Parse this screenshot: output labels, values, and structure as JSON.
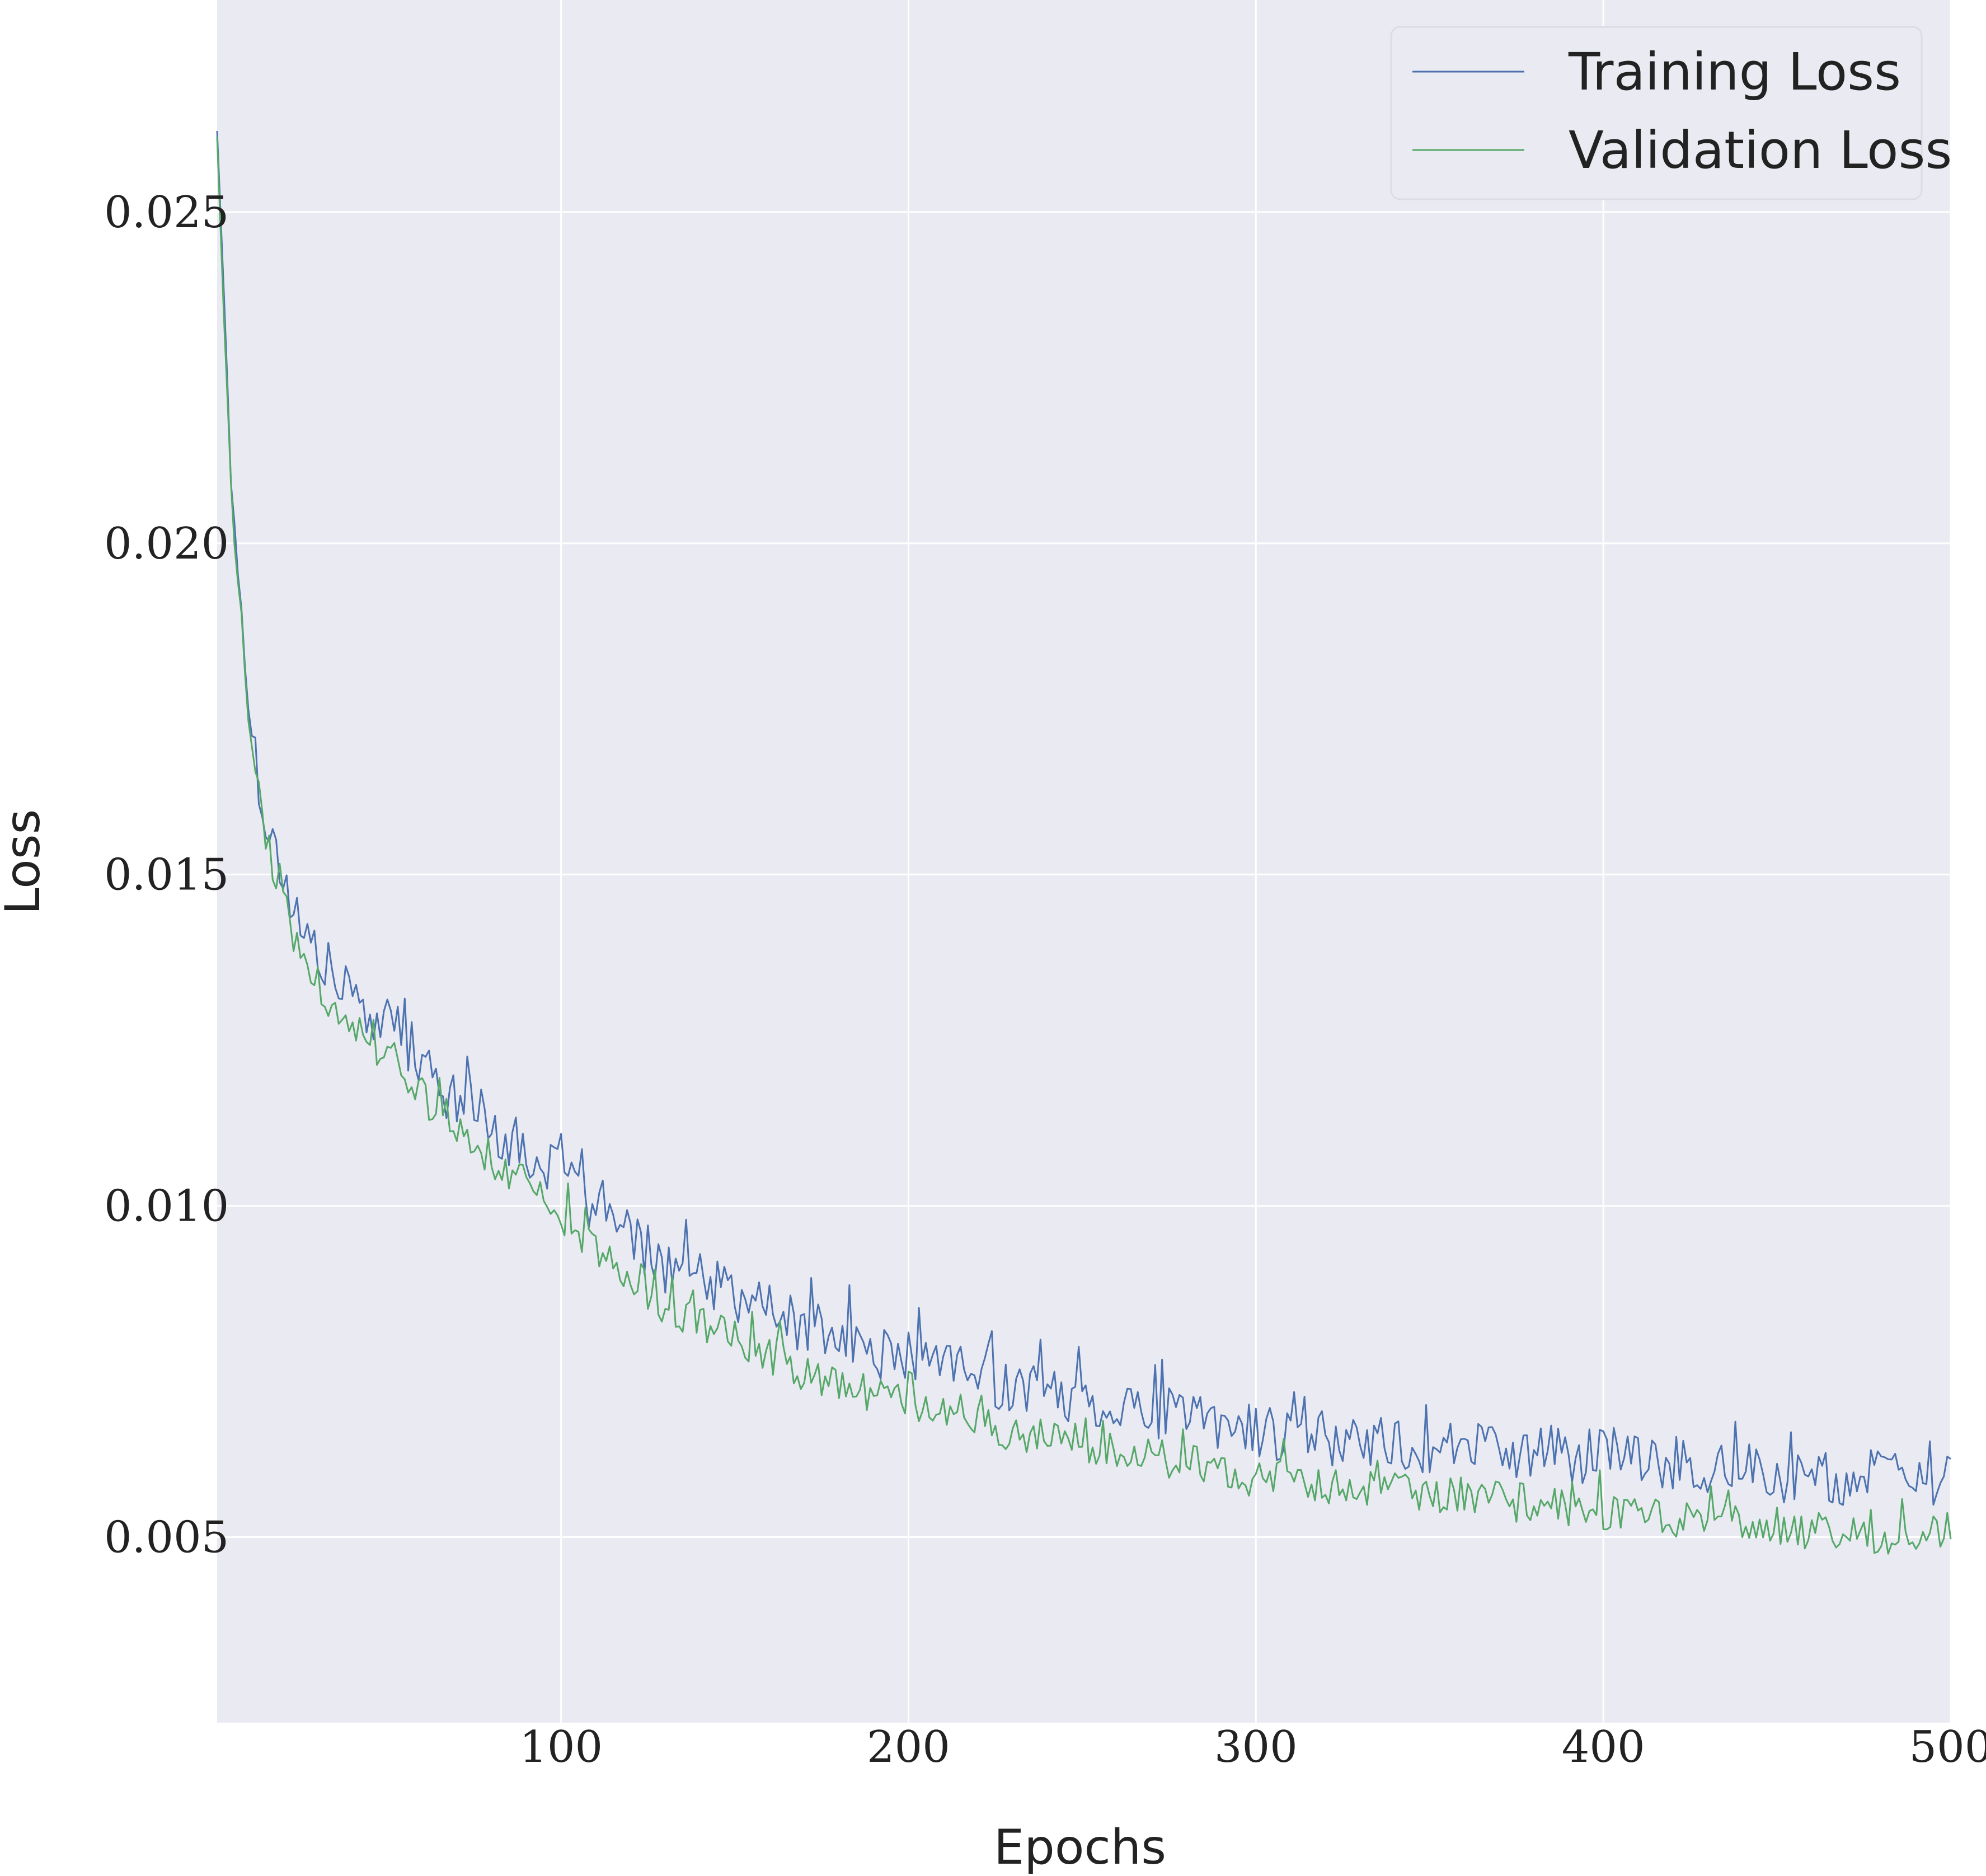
{
  "chart_data": {
    "type": "line",
    "title": "",
    "xlabel": "Epochs",
    "ylabel": "Loss",
    "xlim": [
      1,
      500
    ],
    "ylim": [
      0.0022,
      0.0282
    ],
    "xticks": [
      100,
      200,
      300,
      400,
      500
    ],
    "xtick_labels": [
      "100",
      "200",
      "300",
      "400",
      "500"
    ],
    "yticks": [
      0.005,
      0.01,
      0.015,
      0.02,
      0.025
    ],
    "ytick_labels": [
      "0.005",
      "0.010",
      "0.015",
      "0.020",
      "0.025"
    ],
    "grid": true,
    "legend_position": "top-right",
    "colors": {
      "background": "#eaeaf2",
      "grid": "#ffffff"
    },
    "series": [
      {
        "name": "Training Loss",
        "color": "#4c72b0",
        "x": [
          1,
          5,
          10,
          15,
          20,
          25,
          30,
          35,
          40,
          45,
          50,
          55,
          60,
          65,
          70,
          75,
          80,
          85,
          90,
          95,
          100,
          110,
          120,
          130,
          140,
          150,
          160,
          170,
          180,
          190,
          200,
          210,
          220,
          230,
          240,
          250,
          260,
          270,
          280,
          290,
          300,
          320,
          340,
          360,
          380,
          400,
          420,
          440,
          460,
          480,
          490,
          500
        ],
        "y": [
          0.0263,
          0.021,
          0.0175,
          0.0158,
          0.015,
          0.0142,
          0.0138,
          0.0134,
          0.0131,
          0.0129,
          0.0127,
          0.0124,
          0.0121,
          0.0118,
          0.0116,
          0.0114,
          0.0112,
          0.011,
          0.0108,
          0.0106,
          0.0104,
          0.0099,
          0.0095,
          0.0091,
          0.0089,
          0.0086,
          0.0084,
          0.0082,
          0.008,
          0.0078,
          0.0077,
          0.0075,
          0.0074,
          0.0073,
          0.0072,
          0.0071,
          0.007,
          0.0069,
          0.0068,
          0.0067,
          0.0066,
          0.0065,
          0.0064,
          0.0063,
          0.0063,
          0.0062,
          0.0061,
          0.006,
          0.0059,
          0.0059,
          0.0058,
          0.0058
        ]
      },
      {
        "name": "Validation Loss",
        "color": "#55a868",
        "x": [
          1,
          5,
          10,
          15,
          20,
          25,
          30,
          35,
          40,
          45,
          50,
          55,
          60,
          65,
          70,
          75,
          80,
          85,
          90,
          95,
          100,
          110,
          120,
          130,
          140,
          150,
          160,
          170,
          180,
          190,
          200,
          210,
          220,
          230,
          240,
          250,
          260,
          270,
          280,
          290,
          300,
          320,
          340,
          360,
          380,
          400,
          420,
          440,
          460,
          480,
          490,
          500
        ],
        "y": [
          0.0262,
          0.0208,
          0.0173,
          0.0156,
          0.0146,
          0.0138,
          0.0134,
          0.013,
          0.0127,
          0.0125,
          0.0123,
          0.012,
          0.0117,
          0.0114,
          0.0112,
          0.0109,
          0.0107,
          0.0105,
          0.0103,
          0.0101,
          0.0099,
          0.0094,
          0.0089,
          0.0085,
          0.0082,
          0.008,
          0.0077,
          0.0075,
          0.0073,
          0.0071,
          0.007,
          0.0068,
          0.0067,
          0.0066,
          0.0065,
          0.0064,
          0.0063,
          0.0062,
          0.0061,
          0.006,
          0.0059,
          0.0058,
          0.0057,
          0.0056,
          0.0055,
          0.0054,
          0.0053,
          0.0052,
          0.0051,
          0.005,
          0.005,
          0.0051
        ]
      }
    ]
  }
}
